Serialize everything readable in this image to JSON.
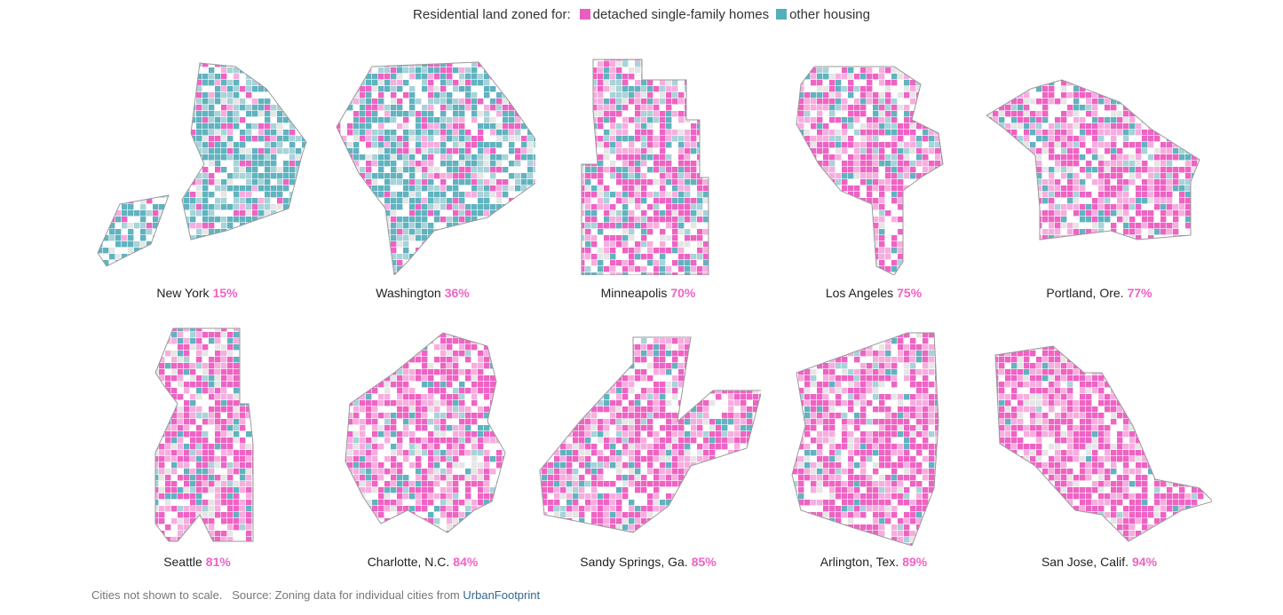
{
  "legend": {
    "lead": "Residential land zoned for:",
    "items": [
      {
        "label": "detached single-family homes",
        "color": "#e85fbf"
      },
      {
        "label": "other housing",
        "color": "#55aebb"
      }
    ]
  },
  "colors": {
    "single_family": "#ee63c3",
    "single_family_light": "#f7aedf",
    "other": "#60b3bf",
    "other_light": "#a7d3d9",
    "nonres": "#e6e6e6",
    "outline": "#9a9a9a"
  },
  "cities": [
    {
      "name": "New York",
      "pct": "15%",
      "share": 0.15
    },
    {
      "name": "Washington",
      "pct": "36%",
      "share": 0.36
    },
    {
      "name": "Minneapolis",
      "pct": "70%",
      "share": 0.7
    },
    {
      "name": "Los Angeles",
      "pct": "75%",
      "share": 0.75
    },
    {
      "name": "Portland, Ore.",
      "pct": "77%",
      "share": 0.77
    },
    {
      "name": "Seattle",
      "pct": "81%",
      "share": 0.81
    },
    {
      "name": "Charlotte, N.C.",
      "pct": "84%",
      "share": 0.84
    },
    {
      "name": "Sandy Springs, Ga.",
      "pct": "85%",
      "share": 0.85
    },
    {
      "name": "Arlington, Tex.",
      "pct": "89%",
      "share": 0.89
    },
    {
      "name": "San Jose, Calif.",
      "pct": "94%",
      "share": 0.94
    }
  ],
  "footer": {
    "note": "Cities not shown to scale.",
    "source_prefix": "Source: Zoning data for individual cities from",
    "source_link": "UrbanFootprint"
  }
}
